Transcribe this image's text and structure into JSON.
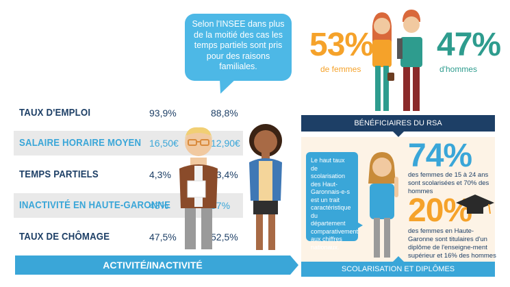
{
  "bubble_text": "Selon l'INSEE dans plus de la moitié des cas les temps partiels sont pris pour des raisons familiales.",
  "stats": [
    {
      "label": "TAUX D'EMPLOI",
      "men": "93,9%",
      "women": "88,8%"
    },
    {
      "label": "SALAIRE HORAIRE MOYEN",
      "men": "16,50€",
      "women": "12,90€"
    },
    {
      "label": "TEMPS PARTIELS",
      "men": "4,3%",
      "women": "13,4%"
    },
    {
      "label": "INACTIVITÉ EN HAUTE-GARONNE",
      "men": "43%",
      "women": "57%"
    },
    {
      "label": "TAUX DE CHÔMAGE",
      "men": "47,5%",
      "women": "52,5%"
    }
  ],
  "activity_banner": "ACTIVITÉ/INACTIVITÉ",
  "rsa": {
    "women_pct": "53%",
    "women_label": "de femmes",
    "men_pct": "47%",
    "men_label": "d'hommes",
    "banner": "BÉNÉFICIAIRES DU RSA"
  },
  "scolarisation": {
    "bubble_text": "Le haut taux de scolarisation des Haut-Garonnais-e-s est un trait caractéristique du département comparativement aux chiffres nationaux.",
    "stat1_pct": "74%",
    "stat1_text": "des femmes de 15 à 24 ans sont scolarisées et 70% des hommes",
    "stat2_pct": "20%",
    "stat2_text": "des femmes en Haute-Garonne sont titulaires d'un diplôme de l'enseigne-ment supérieur et 16% des hommes",
    "banner": "SCOLARISATION ET DIPLÔMES"
  },
  "colors": {
    "navy": "#1d3f66",
    "light_blue": "#3aa6d8",
    "orange": "#f5a22a",
    "teal": "#2e9c8e"
  }
}
